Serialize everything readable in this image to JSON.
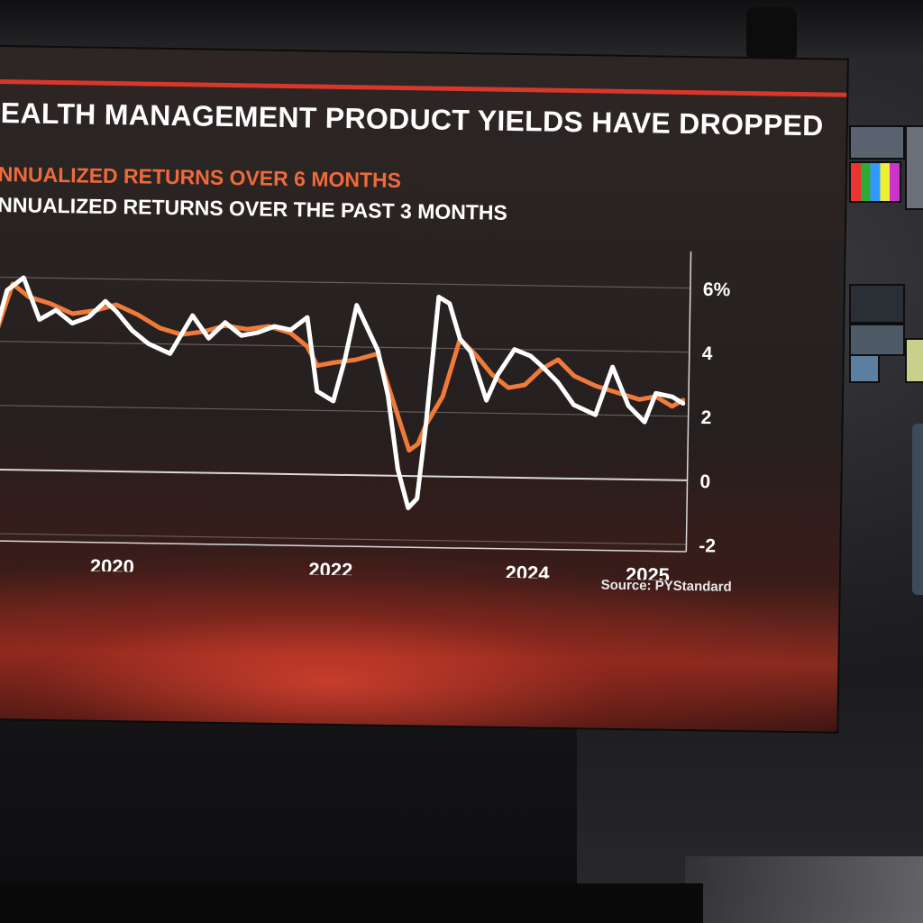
{
  "title": "EALTH MANAGEMENT PRODUCT YIELDS HAVE DROPPED",
  "legend": {
    "series_a": "NNUALIZED RETURNS OVER 6 MONTHS",
    "series_b": "NNUALIZED RETURNS OVER THE PAST 3 MONTHS"
  },
  "source": "Source: PYStandard",
  "colors": {
    "series_a": "#ef7a3a",
    "series_b": "#ffffff",
    "accent": "#d8372b"
  },
  "chart_data": {
    "type": "line",
    "title": "EALTH MANAGEMENT PRODUCT YIELDS HAVE DROPPED",
    "xlabel": "",
    "ylabel": "",
    "ylim": [
      -2,
      7
    ],
    "y_ticks": [
      -2,
      0,
      2,
      4,
      6
    ],
    "y_tick_labels": [
      "-2",
      "0",
      "2",
      "4",
      "6%"
    ],
    "x_tick_labels": [
      "2020",
      "2022",
      "2024",
      "2025"
    ],
    "x_tick_positions": [
      2020.1,
      2022.1,
      2023.9,
      2025.0
    ],
    "xlim": [
      2019.0,
      2025.35
    ],
    "grid": true,
    "legend": "top-left",
    "series": [
      {
        "name": "NNUALIZED RETURNS OVER 6 MONTHS",
        "color": "#ef7a3a",
        "x": [
          2019.0,
          2019.15,
          2019.3,
          2019.5,
          2019.7,
          2019.9,
          2020.1,
          2020.3,
          2020.5,
          2020.7,
          2020.9,
          2021.1,
          2021.3,
          2021.5,
          2021.7,
          2021.85,
          2021.95,
          2022.1,
          2022.3,
          2022.5,
          2022.65,
          2022.8,
          2022.88,
          2022.95,
          2023.1,
          2023.25,
          2023.4,
          2023.55,
          2023.7,
          2023.85,
          2024.0,
          2024.15,
          2024.3,
          2024.5,
          2024.7,
          2024.9,
          2025.05,
          2025.2,
          2025.3
        ],
        "values": [
          4.2,
          5.8,
          5.4,
          5.2,
          4.9,
          5.0,
          5.2,
          4.9,
          4.5,
          4.3,
          4.4,
          4.6,
          4.5,
          4.6,
          4.4,
          4.0,
          3.4,
          3.5,
          3.6,
          3.8,
          2.3,
          0.8,
          1.0,
          1.6,
          2.5,
          4.3,
          3.8,
          3.2,
          2.8,
          2.9,
          3.4,
          3.7,
          3.2,
          2.9,
          2.7,
          2.5,
          2.6,
          2.3,
          2.5
        ]
      },
      {
        "name": "NNUALIZED RETURNS OVER THE PAST 3 MONTHS",
        "color": "#ffffff",
        "x": [
          2019.0,
          2019.1,
          2019.25,
          2019.4,
          2019.55,
          2019.7,
          2019.85,
          2020.0,
          2020.1,
          2020.25,
          2020.4,
          2020.6,
          2020.8,
          2020.95,
          2021.1,
          2021.25,
          2021.4,
          2021.55,
          2021.7,
          2021.85,
          2021.95,
          2022.1,
          2022.2,
          2022.3,
          2022.5,
          2022.6,
          2022.7,
          2022.8,
          2022.88,
          2022.95,
          2023.05,
          2023.15,
          2023.25,
          2023.35,
          2023.5,
          2023.6,
          2023.75,
          2023.9,
          2024.0,
          2024.15,
          2024.3,
          2024.5,
          2024.65,
          2024.8,
          2024.95,
          2025.05,
          2025.2,
          2025.3
        ],
        "values": [
          4.3,
          5.6,
          6.0,
          4.7,
          5.0,
          4.6,
          4.8,
          5.3,
          5.0,
          4.4,
          4.0,
          3.7,
          4.9,
          4.2,
          4.7,
          4.3,
          4.4,
          4.6,
          4.5,
          4.9,
          2.6,
          2.3,
          3.6,
          5.3,
          3.9,
          2.5,
          0.2,
          -1.0,
          -0.7,
          1.6,
          5.6,
          5.4,
          4.3,
          3.9,
          2.4,
          3.2,
          4.0,
          3.8,
          3.5,
          3.0,
          2.3,
          2.0,
          3.5,
          2.3,
          1.8,
          2.7,
          2.6,
          2.4
        ]
      }
    ]
  }
}
